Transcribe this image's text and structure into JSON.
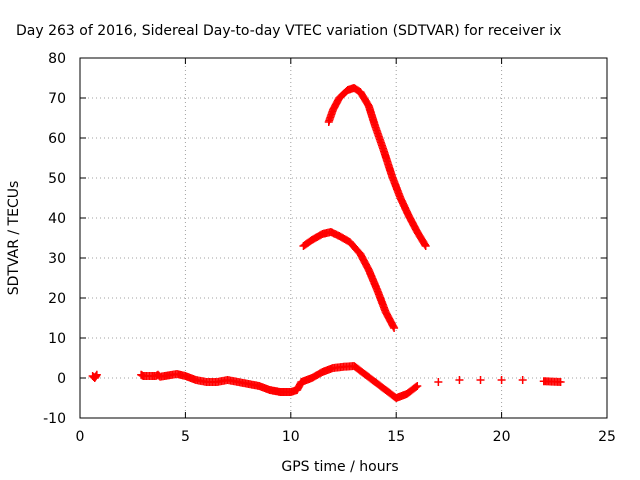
{
  "chart_data": {
    "type": "scatter",
    "title": "Day 263 of 2016, Sidereal Day-to-day VTEC variation (SDTVAR) for receiver ix",
    "xlabel": "GPS time / hours",
    "ylabel": "SDTVAR / TECUs",
    "xlim": [
      0,
      25
    ],
    "ylim": [
      -10,
      80
    ],
    "xticks": [
      0,
      5,
      10,
      15,
      20,
      25
    ],
    "yticks": [
      -10,
      0,
      10,
      20,
      30,
      40,
      50,
      60,
      70,
      80
    ],
    "grid": true,
    "legend": "none",
    "marker": "+",
    "color": "#ff0000",
    "series": [
      {
        "x": [
          0.6,
          0.7,
          0.8,
          2.9,
          3.0,
          3.6,
          3.7,
          3.8,
          4.6,
          5.0,
          5.5,
          6.0,
          6.5,
          7.0,
          7.5,
          8.0,
          8.5,
          9.0,
          9.5,
          10.0,
          10.3,
          10.5,
          11.0,
          11.5,
          12.0,
          12.5,
          13.0,
          13.5,
          14.0,
          14.5,
          15.0,
          15.5,
          16.0,
          17.0,
          18.0,
          19.0,
          20.0,
          21.0,
          22.0,
          22.8
        ],
        "y": [
          0.5,
          0.0,
          0.8,
          0.8,
          0.5,
          0.5,
          0.8,
          0.3,
          1.0,
          0.5,
          -0.5,
          -1.0,
          -1.0,
          -0.5,
          -1.0,
          -1.5,
          -2.0,
          -3.0,
          -3.5,
          -3.5,
          -3.0,
          -1.0,
          0.0,
          1.5,
          2.5,
          2.8,
          3.0,
          1.0,
          -1.0,
          -3.0,
          -5.0,
          -4.0,
          -2.0,
          -1.0,
          -0.5,
          -0.5,
          -0.5,
          -0.5,
          -0.8,
          -1.0
        ]
      },
      {
        "x": [
          10.6,
          11.0,
          11.5,
          11.9,
          12.3,
          12.8,
          13.3,
          13.7,
          14.1,
          14.5,
          14.9
        ],
        "y": [
          33.0,
          34.5,
          36.0,
          36.5,
          35.5,
          34.0,
          31.0,
          27.0,
          22.0,
          16.5,
          12.5
        ]
      },
      {
        "x": [
          11.8,
          12.0,
          12.3,
          12.7,
          13.0,
          13.3,
          13.7,
          14.0,
          14.4,
          14.8,
          15.2,
          15.6,
          16.0,
          16.4
        ],
        "y": [
          64.0,
          67.0,
          70.0,
          72.0,
          72.5,
          71.5,
          68.0,
          63.0,
          57.0,
          50.5,
          45.0,
          40.5,
          36.5,
          33.0
        ]
      }
    ]
  }
}
